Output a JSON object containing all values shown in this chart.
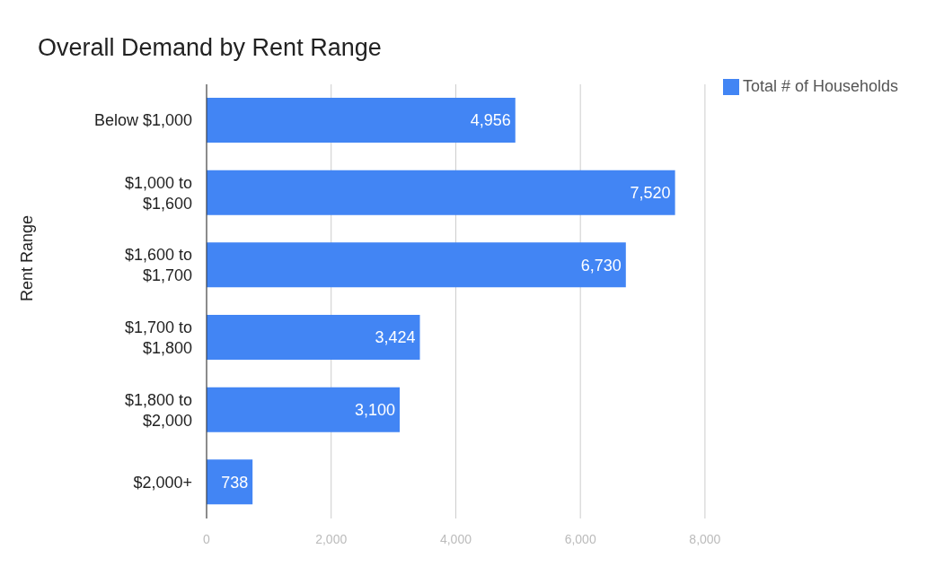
{
  "chart_data": {
    "type": "bar",
    "orientation": "horizontal",
    "title": "Overall Demand by Rent Range",
    "ylabel": "Rent Range",
    "categories": [
      "Below $1,000",
      "$1,000 to $1,600",
      "$1,600 to $1,700",
      "$1,700 to $1,800",
      "$1,800 to $2,000",
      "$2,000+"
    ],
    "series": [
      {
        "name": "Total # of Households",
        "color": "#4285f4",
        "values": [
          4956,
          7520,
          6730,
          3424,
          3100,
          738
        ],
        "value_labels": [
          "4,956",
          "7,520",
          "6,730",
          "3,424",
          "3,100",
          "738"
        ]
      }
    ],
    "xlim": [
      0,
      8000
    ],
    "xticks": [
      {
        "value": 0,
        "label": "0"
      },
      {
        "value": 2000,
        "label": "2,000"
      },
      {
        "value": 4000,
        "label": "4,000"
      },
      {
        "value": 6000,
        "label": "6,000"
      },
      {
        "value": 8000,
        "label": "8,000"
      }
    ],
    "grid": "x",
    "legend": "top right"
  }
}
